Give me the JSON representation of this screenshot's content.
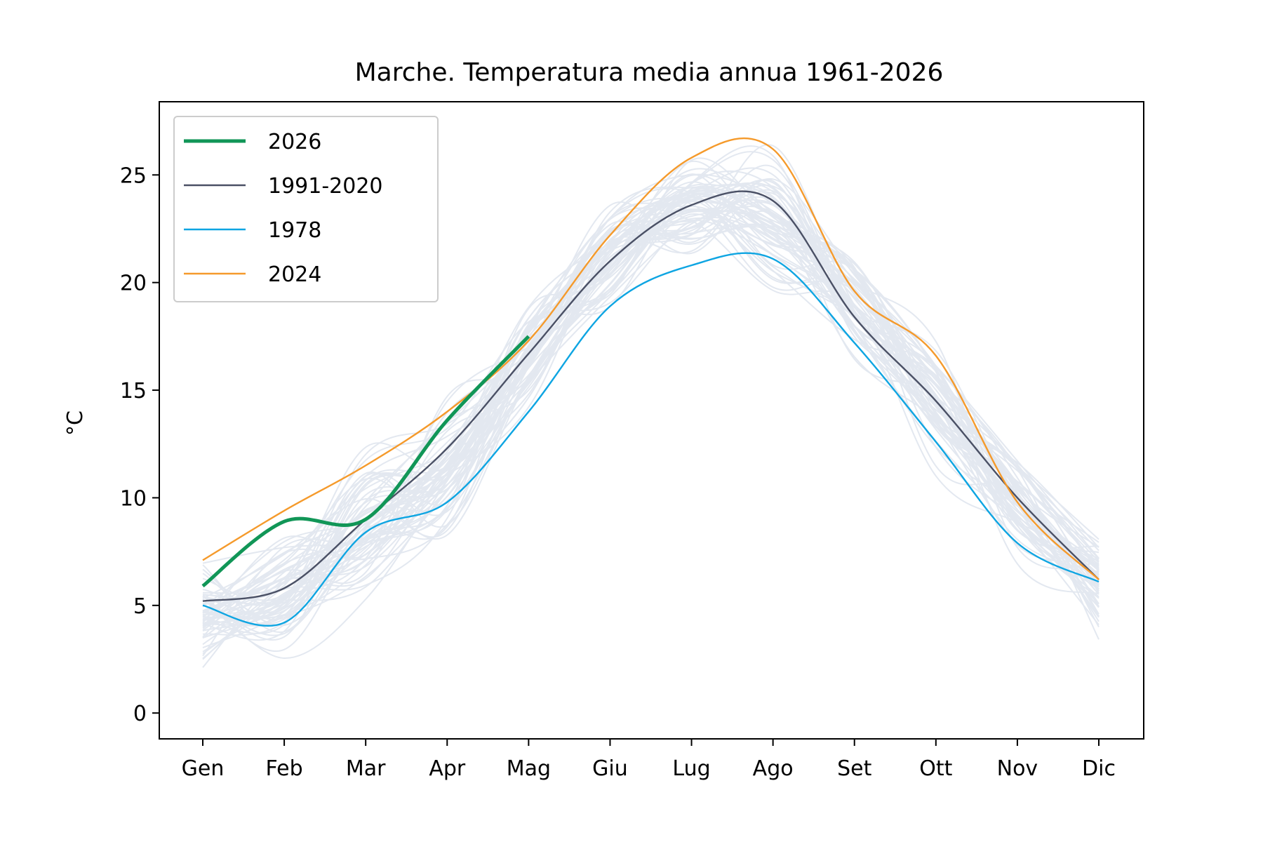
{
  "chart_data": {
    "type": "line",
    "title": "Marche. Temperatura media annua 1961-2026",
    "xlabel": "",
    "ylabel": "°C",
    "ylim": [
      -1.2,
      28.4
    ],
    "yticks": [
      0,
      5,
      10,
      15,
      20,
      25
    ],
    "xticks": [
      "Gen",
      "Feb",
      "Mar",
      "Apr",
      "Mag",
      "Giu",
      "Lug",
      "Ago",
      "Set",
      "Ott",
      "Nov",
      "Dic"
    ],
    "grid": false,
    "legend": {
      "placement": "top-left"
    },
    "series": [
      {
        "name": "2026",
        "color": "#119657",
        "width": 5,
        "values": [
          5.9,
          8.9,
          9.0,
          13.6,
          17.5
        ]
      },
      {
        "name": "1991-2020",
        "color": "#4a5065",
        "width": 2.4,
        "values": [
          5.2,
          5.8,
          9.0,
          12.3,
          16.7,
          21.0,
          23.6,
          23.8,
          18.4,
          14.5,
          10.0,
          6.2
        ]
      },
      {
        "name": "1978",
        "color": "#0ea5e2",
        "width": 2.4,
        "values": [
          5.0,
          4.2,
          8.4,
          9.8,
          14.0,
          18.9,
          20.8,
          21.1,
          17.2,
          12.6,
          7.9,
          6.1
        ]
      },
      {
        "name": "2024",
        "color": "#f59a2b",
        "width": 2.4,
        "values": [
          7.1,
          9.4,
          11.5,
          14.0,
          17.3,
          22.2,
          25.8,
          26.2,
          19.6,
          16.6,
          9.8,
          6.2
        ]
      }
    ],
    "background_series": {
      "color": "#e3e8f0",
      "note_count": 64,
      "range_min": [
        1.5,
        0.8,
        4.2,
        7.5,
        13.5,
        18.0,
        20.8,
        19.0,
        15.3,
        10.8,
        6.5,
        3.0
      ],
      "range_max": [
        8.0,
        9.3,
        12.8,
        15.5,
        19.5,
        24.5,
        26.5,
        26.9,
        23.0,
        19.0,
        13.0,
        9.0
      ]
    }
  }
}
